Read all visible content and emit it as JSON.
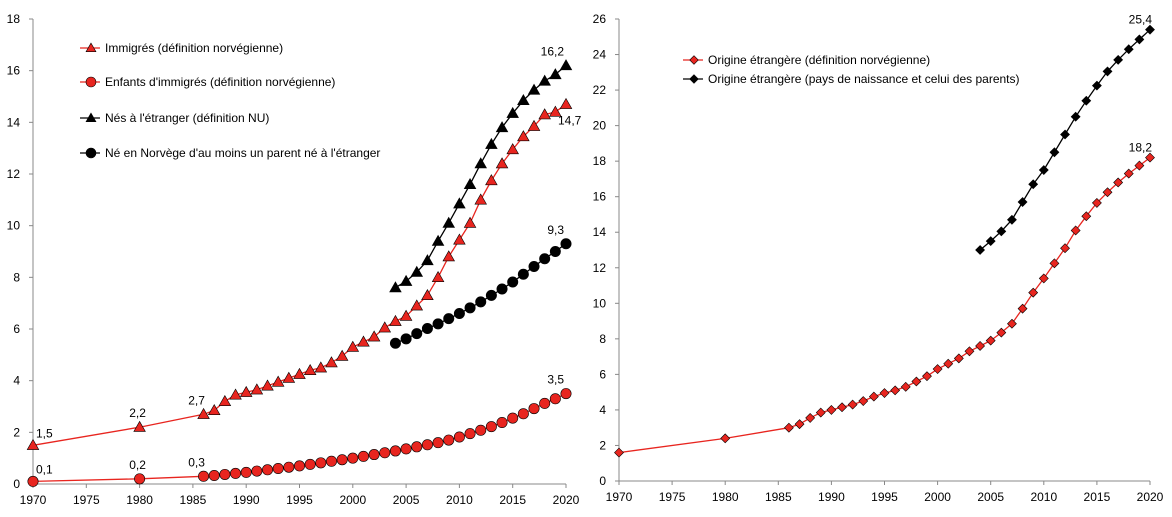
{
  "chart_data": [
    {
      "type": "line",
      "xlim": [
        1970,
        2020
      ],
      "ylim": [
        0,
        18
      ],
      "xticks": [
        1970,
        1975,
        1980,
        1985,
        1990,
        1995,
        2000,
        2005,
        2010,
        2015,
        2020
      ],
      "yticks": [
        0,
        2,
        4,
        6,
        8,
        10,
        12,
        14,
        16,
        18
      ],
      "grid": false,
      "legend_position": "top-left",
      "series": [
        {
          "name": "Immigrés (définition norvégienne)",
          "color": "#e8251f",
          "marker": "triangle",
          "x": [
            1970,
            1980,
            1986,
            1987,
            1988,
            1989,
            1990,
            1991,
            1992,
            1993,
            1994,
            1995,
            1996,
            1997,
            1998,
            1999,
            2000,
            2001,
            2002,
            2003,
            2004,
            2005,
            2006,
            2007,
            2008,
            2009,
            2010,
            2011,
            2012,
            2013,
            2014,
            2015,
            2016,
            2017,
            2018,
            2019,
            2020
          ],
          "y": [
            1.5,
            2.2,
            2.7,
            2.85,
            3.2,
            3.45,
            3.55,
            3.65,
            3.8,
            3.95,
            4.1,
            4.25,
            4.4,
            4.5,
            4.7,
            4.95,
            5.3,
            5.5,
            5.7,
            6.05,
            6.3,
            6.5,
            6.9,
            7.3,
            8.0,
            8.8,
            9.45,
            10.1,
            11.0,
            11.75,
            12.4,
            12.95,
            13.45,
            13.85,
            14.3,
            14.4,
            14.7
          ],
          "point_labels": {
            "1970": "1,5",
            "1980": "2,2",
            "1986": "2,7",
            "2020": "14,7"
          }
        },
        {
          "name": "Enfants d'immigrés (définition norvégienne)",
          "color": "#e8251f",
          "marker": "circle",
          "x": [
            1970,
            1980,
            1986,
            1987,
            1988,
            1989,
            1990,
            1991,
            1992,
            1993,
            1994,
            1995,
            1996,
            1997,
            1998,
            1999,
            2000,
            2001,
            2002,
            2003,
            2004,
            2005,
            2006,
            2007,
            2008,
            2009,
            2010,
            2011,
            2012,
            2013,
            2014,
            2015,
            2016,
            2017,
            2018,
            2019,
            2020
          ],
          "y": [
            0.1,
            0.2,
            0.3,
            0.33,
            0.37,
            0.41,
            0.45,
            0.5,
            0.55,
            0.6,
            0.65,
            0.7,
            0.76,
            0.82,
            0.88,
            0.94,
            1.0,
            1.07,
            1.14,
            1.21,
            1.28,
            1.36,
            1.44,
            1.52,
            1.6,
            1.7,
            1.82,
            1.95,
            2.08,
            2.22,
            2.38,
            2.55,
            2.72,
            2.92,
            3.12,
            3.3,
            3.5
          ],
          "point_labels": {
            "1970": "0,1",
            "1980": "0,2",
            "1986": "0,3",
            "2020": "3,5"
          }
        },
        {
          "name": "Nés à l'étranger (définition NU)",
          "color": "#000000",
          "marker": "triangle",
          "x": [
            2004,
            2005,
            2006,
            2007,
            2008,
            2009,
            2010,
            2011,
            2012,
            2013,
            2014,
            2015,
            2016,
            2017,
            2018,
            2019,
            2020
          ],
          "y": [
            7.6,
            7.85,
            8.2,
            8.65,
            9.4,
            10.1,
            10.85,
            11.6,
            12.4,
            13.15,
            13.8,
            14.35,
            14.85,
            15.25,
            15.6,
            15.85,
            16.2
          ],
          "point_labels": {
            "2020": "16,2"
          }
        },
        {
          "name": "Né en Norvège d'au moins un parent né à l'étranger",
          "color": "#000000",
          "marker": "circle",
          "x": [
            2004,
            2005,
            2006,
            2007,
            2008,
            2009,
            2010,
            2011,
            2012,
            2013,
            2014,
            2015,
            2016,
            2017,
            2018,
            2019,
            2020
          ],
          "y": [
            5.45,
            5.62,
            5.82,
            6.02,
            6.2,
            6.4,
            6.6,
            6.82,
            7.05,
            7.3,
            7.55,
            7.82,
            8.12,
            8.42,
            8.72,
            9.0,
            9.3
          ],
          "point_labels": {
            "2020": "9,3"
          }
        }
      ]
    },
    {
      "type": "line",
      "xlim": [
        1970,
        2020
      ],
      "ylim": [
        0,
        26
      ],
      "xticks": [
        1970,
        1975,
        1980,
        1985,
        1990,
        1995,
        2000,
        2005,
        2010,
        2015,
        2020
      ],
      "yticks": [
        0,
        2,
        4,
        6,
        8,
        10,
        12,
        14,
        16,
        18,
        20,
        22,
        24,
        26
      ],
      "grid": false,
      "legend_position": "top-left",
      "series": [
        {
          "name": "Origine étrangère (définition norvégienne)",
          "color": "#e8251f",
          "marker": "diamond",
          "x": [
            1970,
            1980,
            1986,
            1987,
            1988,
            1989,
            1990,
            1991,
            1992,
            1993,
            1994,
            1995,
            1996,
            1997,
            1998,
            1999,
            2000,
            2001,
            2002,
            2003,
            2004,
            2005,
            2006,
            2007,
            2008,
            2009,
            2010,
            2011,
            2012,
            2013,
            2014,
            2015,
            2016,
            2017,
            2018,
            2019,
            2020
          ],
          "y": [
            1.6,
            2.4,
            3.0,
            3.2,
            3.55,
            3.85,
            4.0,
            4.15,
            4.3,
            4.5,
            4.75,
            4.95,
            5.1,
            5.3,
            5.6,
            5.9,
            6.3,
            6.6,
            6.9,
            7.3,
            7.6,
            7.9,
            8.35,
            8.85,
            9.7,
            10.6,
            11.4,
            12.25,
            13.1,
            14.1,
            14.9,
            15.65,
            16.25,
            16.8,
            17.3,
            17.75,
            18.2
          ],
          "point_labels": {
            "2020": "18,2"
          }
        },
        {
          "name": "Origine étrangère (pays de naissance et celui des parents)",
          "color": "#000000",
          "marker": "diamond",
          "x": [
            2004,
            2005,
            2006,
            2007,
            2008,
            2009,
            2010,
            2011,
            2012,
            2013,
            2014,
            2015,
            2016,
            2017,
            2018,
            2019,
            2020
          ],
          "y": [
            13.0,
            13.5,
            14.05,
            14.7,
            15.7,
            16.7,
            17.5,
            18.5,
            19.5,
            20.5,
            21.4,
            22.25,
            23.05,
            23.7,
            24.3,
            24.85,
            25.4
          ],
          "point_labels": {
            "2020": "25,4"
          }
        }
      ]
    }
  ]
}
